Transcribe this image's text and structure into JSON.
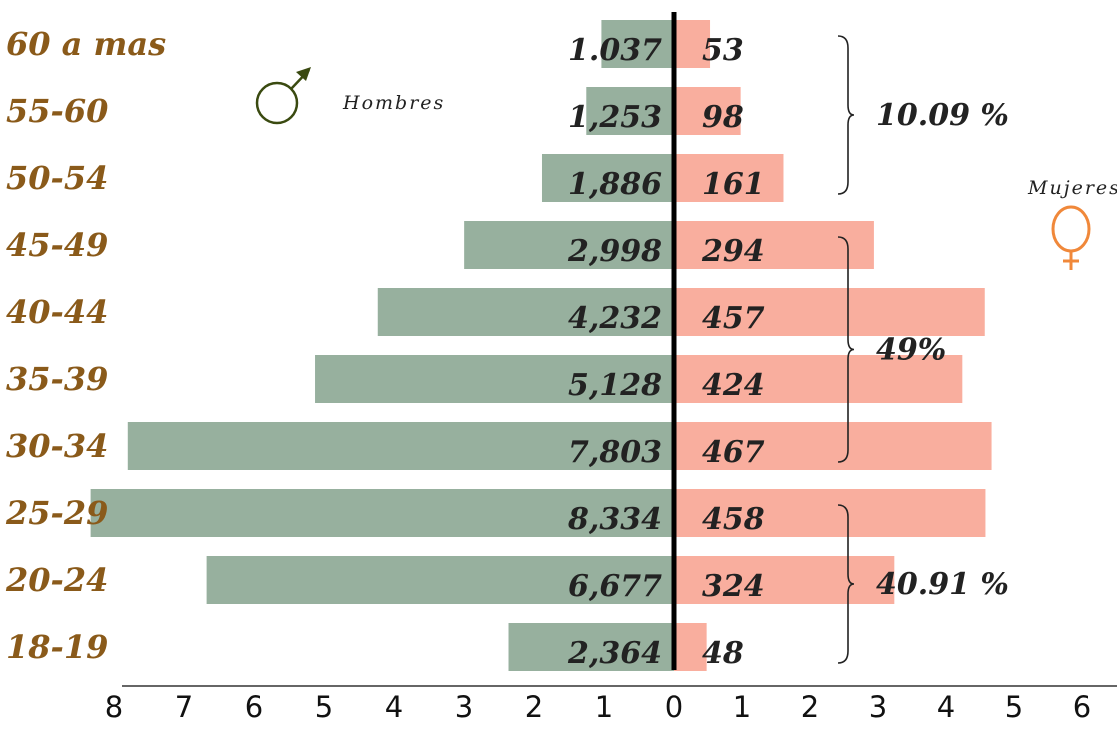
{
  "chart_data": {
    "type": "bar",
    "orientation": "horizontal-population-pyramid",
    "categories": [
      "60 a mas",
      "55-60",
      "50-54",
      "45-49",
      "40-44",
      "35-39",
      "30-34",
      "25-29",
      "20-24",
      "18-19"
    ],
    "series": [
      {
        "name": "Hombres",
        "side": "left",
        "color": "#97b09e",
        "values": [
          1037,
          1253,
          1886,
          2998,
          4232,
          5128,
          7803,
          8334,
          6677,
          2364
        ],
        "value_labels": [
          "1.037",
          "1,253",
          "1,886",
          "2,998",
          "4,232",
          "5,128",
          "7,803",
          "8,334",
          "6,677",
          "2,364"
        ]
      },
      {
        "name": "Mujeres",
        "side": "right",
        "color": "#f9ae9e",
        "values": [
          53,
          98,
          161,
          294,
          457,
          424,
          467,
          458,
          324,
          48
        ],
        "value_labels": [
          "53",
          "98",
          "161",
          "294",
          "457",
          "424",
          "467",
          "458",
          "324",
          "48"
        ]
      }
    ],
    "axis": {
      "left_ticks": [
        "8",
        "7",
        "6",
        "5",
        "4",
        "3",
        "2",
        "1"
      ],
      "center_tick": "0",
      "right_ticks": [
        "1",
        "2",
        "3",
        "4",
        "5",
        "6"
      ]
    },
    "groups": [
      {
        "label": "10.09 %",
        "from": "60 a mas",
        "to": "50-54"
      },
      {
        "label": "49%",
        "from": "45-49",
        "to": "30-34"
      },
      {
        "label": "40.91 %",
        "from": "25-29",
        "to": "18-19"
      }
    ],
    "legend": {
      "male_label": "Hombres",
      "female_label": "Mujeres",
      "male_symbol": "male-symbol-icon",
      "female_symbol": "female-symbol-icon",
      "male_symbol_color": "#3a4a10",
      "female_symbol_color": "#f0883a"
    },
    "colors": {
      "age_label": "#8a5a1a",
      "center_line": "#000000"
    }
  }
}
